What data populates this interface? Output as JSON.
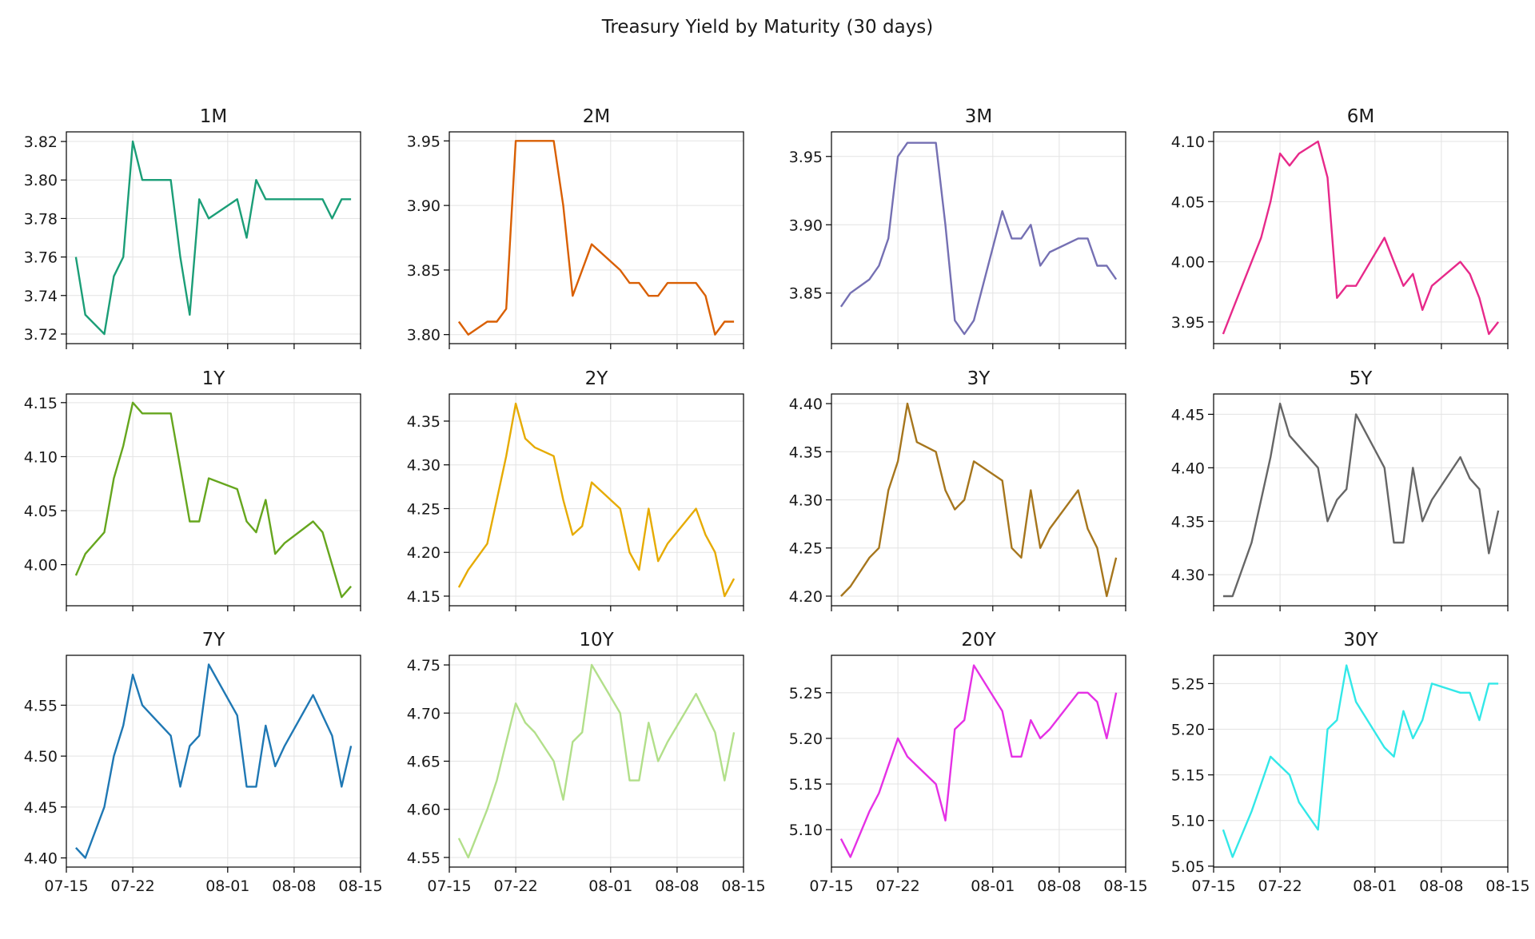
{
  "figure_title": "Treasury Yield by Maturity (30 days)",
  "chart_data": {
    "type": "line",
    "layout": "grid 3x4, shared x-axis",
    "x": [
      "07-16",
      "07-17",
      "07-19",
      "07-20",
      "07-21",
      "07-22",
      "07-23",
      "07-24",
      "07-26",
      "07-27",
      "07-28",
      "07-29",
      "07-30",
      "08-02",
      "08-03",
      "08-04",
      "08-05",
      "08-06",
      "08-07",
      "08-10",
      "08-11",
      "08-12",
      "08-13",
      "08-14"
    ],
    "xlim": [
      "07-15",
      "08-15"
    ],
    "x_ticks": [
      "07-15",
      "07-22",
      "08-01",
      "08-08",
      "08-15"
    ],
    "grid": true,
    "panels": [
      {
        "title": "1M",
        "color": "#1b9e77",
        "y_ticks": [
          3.72,
          3.74,
          3.76,
          3.78,
          3.8,
          3.82
        ],
        "ylim": [
          3.715,
          3.825
        ],
        "values": [
          3.76,
          3.73,
          3.72,
          3.75,
          3.76,
          3.82,
          3.8,
          3.8,
          3.8,
          3.76,
          3.73,
          3.79,
          3.78,
          3.79,
          3.77,
          3.8,
          3.79,
          3.79,
          3.79,
          3.79,
          3.79,
          3.78,
          3.79,
          3.79
        ]
      },
      {
        "title": "2M",
        "color": "#d95f02",
        "y_ticks": [
          3.8,
          3.85,
          3.9,
          3.95
        ],
        "ylim": [
          3.793,
          3.957
        ],
        "values": [
          3.81,
          3.8,
          3.81,
          3.81,
          3.82,
          3.95,
          3.95,
          3.95,
          3.95,
          3.9,
          3.83,
          3.85,
          3.87,
          3.85,
          3.84,
          3.84,
          3.83,
          3.83,
          3.84,
          3.84,
          3.83,
          3.8,
          3.81,
          3.81
        ]
      },
      {
        "title": "3M",
        "color": "#7570b3",
        "y_ticks": [
          3.85,
          3.9,
          3.95
        ],
        "ylim": [
          3.813,
          3.968
        ],
        "values": [
          3.84,
          3.85,
          3.86,
          3.87,
          3.89,
          3.95,
          3.96,
          3.96,
          3.96,
          3.9,
          3.83,
          3.82,
          3.83,
          3.91,
          3.89,
          3.89,
          3.9,
          3.87,
          3.88,
          3.89,
          3.89,
          3.87,
          3.87,
          3.86
        ]
      },
      {
        "title": "6M",
        "color": "#e7298a",
        "y_ticks": [
          3.95,
          4.0,
          4.05,
          4.1
        ],
        "ylim": [
          3.932,
          4.108
        ],
        "values": [
          3.94,
          3.96,
          4.0,
          4.02,
          4.05,
          4.09,
          4.08,
          4.09,
          4.1,
          4.07,
          3.97,
          3.98,
          3.98,
          4.02,
          4.0,
          3.98,
          3.99,
          3.96,
          3.98,
          4.0,
          3.99,
          3.97,
          3.94,
          3.95
        ]
      },
      {
        "title": "1Y",
        "color": "#66a61e",
        "y_ticks": [
          4.0,
          4.05,
          4.1,
          4.15
        ],
        "ylim": [
          3.962,
          4.158
        ],
        "values": [
          3.99,
          4.01,
          4.03,
          4.08,
          4.11,
          4.15,
          4.14,
          4.14,
          4.14,
          4.09,
          4.04,
          4.04,
          4.08,
          4.07,
          4.04,
          4.03,
          4.06,
          4.01,
          4.02,
          4.04,
          4.03,
          4.0,
          3.97,
          3.98
        ]
      },
      {
        "title": "2Y",
        "color": "#e6ab02",
        "y_ticks": [
          4.15,
          4.2,
          4.25,
          4.3,
          4.35
        ],
        "ylim": [
          4.139,
          4.381
        ],
        "values": [
          4.16,
          4.18,
          4.21,
          4.26,
          4.31,
          4.37,
          4.33,
          4.32,
          4.31,
          4.26,
          4.22,
          4.23,
          4.28,
          4.25,
          4.2,
          4.18,
          4.25,
          4.19,
          4.21,
          4.25,
          4.22,
          4.2,
          4.15,
          4.17
        ]
      },
      {
        "title": "3Y",
        "color": "#a6761d",
        "y_ticks": [
          4.2,
          4.25,
          4.3,
          4.35,
          4.4
        ],
        "ylim": [
          4.19,
          4.41
        ],
        "values": [
          4.2,
          4.21,
          4.24,
          4.25,
          4.31,
          4.34,
          4.4,
          4.36,
          4.35,
          4.31,
          4.29,
          4.3,
          4.34,
          4.32,
          4.25,
          4.24,
          4.31,
          4.25,
          4.27,
          4.31,
          4.27,
          4.25,
          4.2,
          4.24
        ]
      },
      {
        "title": "5Y",
        "color": "#666666",
        "y_ticks": [
          4.3,
          4.35,
          4.4,
          4.45
        ],
        "ylim": [
          4.271,
          4.469
        ],
        "values": [
          4.28,
          4.28,
          4.33,
          4.37,
          4.41,
          4.46,
          4.43,
          4.42,
          4.4,
          4.35,
          4.37,
          4.38,
          4.45,
          4.4,
          4.33,
          4.33,
          4.4,
          4.35,
          4.37,
          4.41,
          4.39,
          4.38,
          4.32,
          4.36
        ]
      },
      {
        "title": "7Y",
        "color": "#1f78b4",
        "y_ticks": [
          4.4,
          4.45,
          4.5,
          4.55
        ],
        "ylim": [
          4.391,
          4.599
        ],
        "values": [
          4.41,
          4.4,
          4.45,
          4.5,
          4.53,
          4.58,
          4.55,
          4.54,
          4.52,
          4.47,
          4.51,
          4.52,
          4.59,
          4.54,
          4.47,
          4.47,
          4.53,
          4.49,
          4.51,
          4.56,
          4.54,
          4.52,
          4.47,
          4.51
        ]
      },
      {
        "title": "10Y",
        "color": "#b2df8a",
        "y_ticks": [
          4.55,
          4.6,
          4.65,
          4.7,
          4.75
        ],
        "ylim": [
          4.54,
          4.76
        ],
        "values": [
          4.57,
          4.55,
          4.6,
          4.63,
          4.67,
          4.71,
          4.69,
          4.68,
          4.65,
          4.61,
          4.67,
          4.68,
          4.75,
          4.7,
          4.63,
          4.63,
          4.69,
          4.65,
          4.67,
          4.72,
          4.7,
          4.68,
          4.63,
          4.68
        ]
      },
      {
        "title": "20Y",
        "color": "#e531e5",
        "y_ticks": [
          5.1,
          5.15,
          5.2,
          5.25
        ],
        "ylim": [
          5.059,
          5.291
        ],
        "values": [
          5.09,
          5.07,
          5.12,
          5.14,
          5.17,
          5.2,
          5.18,
          5.17,
          5.15,
          5.11,
          5.21,
          5.22,
          5.28,
          5.23,
          5.18,
          5.18,
          5.22,
          5.2,
          5.21,
          5.25,
          5.25,
          5.24,
          5.2,
          5.25
        ]
      },
      {
        "title": "30Y",
        "color": "#33e8e8",
        "y_ticks": [
          5.05,
          5.1,
          5.15,
          5.2,
          5.25
        ],
        "ylim": [
          5.049,
          5.281
        ],
        "values": [
          5.09,
          5.06,
          5.11,
          5.14,
          5.17,
          5.16,
          5.15,
          5.12,
          5.09,
          5.2,
          5.21,
          5.27,
          5.23,
          5.18,
          5.17,
          5.22,
          5.19,
          5.21,
          5.25,
          5.24,
          5.24,
          5.21,
          5.25,
          5.25
        ]
      }
    ]
  }
}
